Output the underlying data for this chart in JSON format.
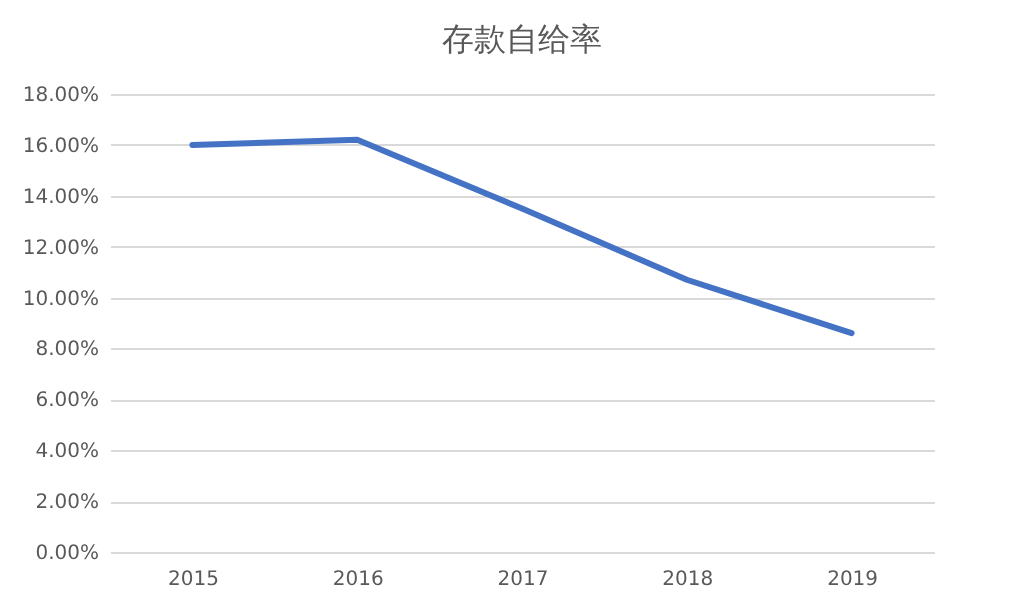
{
  "chart_data": {
    "type": "line",
    "title": "存款自给率",
    "categories": [
      "2015",
      "2016",
      "2017",
      "2018",
      "2019"
    ],
    "series": [
      {
        "color": "#4472c4",
        "values": [
          16.0,
          16.2,
          13.5,
          10.7,
          8.6
        ]
      }
    ],
    "ylim": [
      0,
      18
    ],
    "yticks": [
      {
        "value": 0,
        "label": "0.00%"
      },
      {
        "value": 2,
        "label": "2.00%"
      },
      {
        "value": 4,
        "label": "4.00%"
      },
      {
        "value": 6,
        "label": "6.00%"
      },
      {
        "value": 8,
        "label": "8.00%"
      },
      {
        "value": 10,
        "label": "10.00%"
      },
      {
        "value": 12,
        "label": "12.00%"
      },
      {
        "value": 14,
        "label": "14.00%"
      },
      {
        "value": 16,
        "label": "16.00%"
      },
      {
        "value": 18,
        "label": "18.00%"
      }
    ],
    "grid": "y",
    "marker": "none",
    "line_style": "solid",
    "legend": false
  }
}
